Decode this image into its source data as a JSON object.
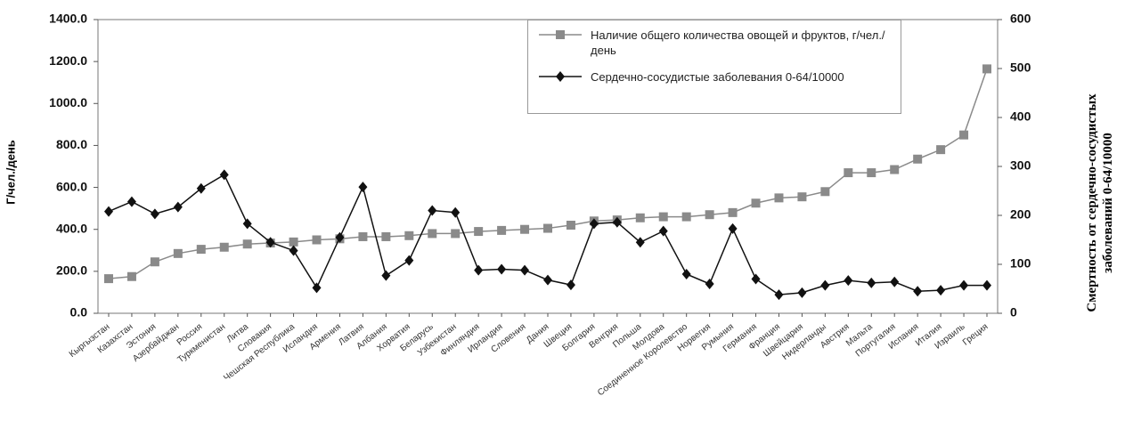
{
  "chart_data": {
    "type": "line",
    "ylabel": "Г/чел./день",
    "y2label": "Смертность от сердечно-сосудистых заболеваний 0-64/10000",
    "categories": [
      "Кыргызстан",
      "Казахстан",
      "Эстония",
      "Азербайджан",
      "Россия",
      "Туркменистан",
      "Литва",
      "Словакия",
      "Чешская Республика",
      "Исландия",
      "Армения",
      "Латвия",
      "Албания",
      "Хорватия",
      "Беларусь",
      "Узбекистан",
      "Финляндия",
      "Ирландия",
      "Словения",
      "Дания",
      "Швеция",
      "Болгария",
      "Венгрия",
      "Польша",
      "Молдова",
      "Соединенное Королевство",
      "Норвегия",
      "Румыния",
      "Германия",
      "Франция",
      "Швейцария",
      "Нидерланды",
      "Австрия",
      "Мальта",
      "Португалия",
      "Испания",
      "Италия",
      "Израиль",
      "Греция"
    ],
    "series": [
      {
        "name": "Наличие общего количества овощей и фруктов, г/чел./день",
        "color": "#8a8a8a",
        "marker": "square",
        "values": [
          165,
          175,
          245,
          285,
          305,
          315,
          330,
          335,
          340,
          350,
          355,
          365,
          365,
          370,
          380,
          380,
          390,
          395,
          400,
          405,
          420,
          440,
          445,
          455,
          460,
          460,
          470,
          480,
          525,
          550,
          555,
          580,
          670,
          670,
          685,
          735,
          780,
          850,
          1165
        ]
      },
      {
        "name": "Сердечно-сосудистые заболевания 0-64/10000",
        "color": "#111111",
        "marker": "diamond",
        "axis": "y2",
        "values": [
          208,
          228,
          203,
          217,
          255,
          283,
          183,
          145,
          128,
          52,
          155,
          258,
          77,
          108,
          210,
          206,
          88,
          90,
          88,
          68,
          58,
          183,
          186,
          145,
          168,
          80,
          60,
          173,
          70,
          38,
          42,
          57,
          67,
          62,
          64,
          45,
          47,
          57,
          57
        ]
      }
    ],
    "ylim": [
      0,
      1400
    ],
    "yticks": [
      {
        "value": 0,
        "label": "0.0"
      },
      {
        "value": 200,
        "label": "200.0"
      },
      {
        "value": 400,
        "label": "400.0"
      },
      {
        "value": 600,
        "label": "600.0"
      },
      {
        "value": 800,
        "label": "800.0"
      },
      {
        "value": 1000,
        "label": "1000.0"
      },
      {
        "value": 1200,
        "label": "1200.0"
      },
      {
        "value": 1400,
        "label": "1400.0"
      }
    ],
    "y2lim": [
      0,
      600
    ],
    "y2ticks": [
      0,
      100,
      200,
      300,
      400,
      500,
      600
    ],
    "legend": "top-right"
  }
}
